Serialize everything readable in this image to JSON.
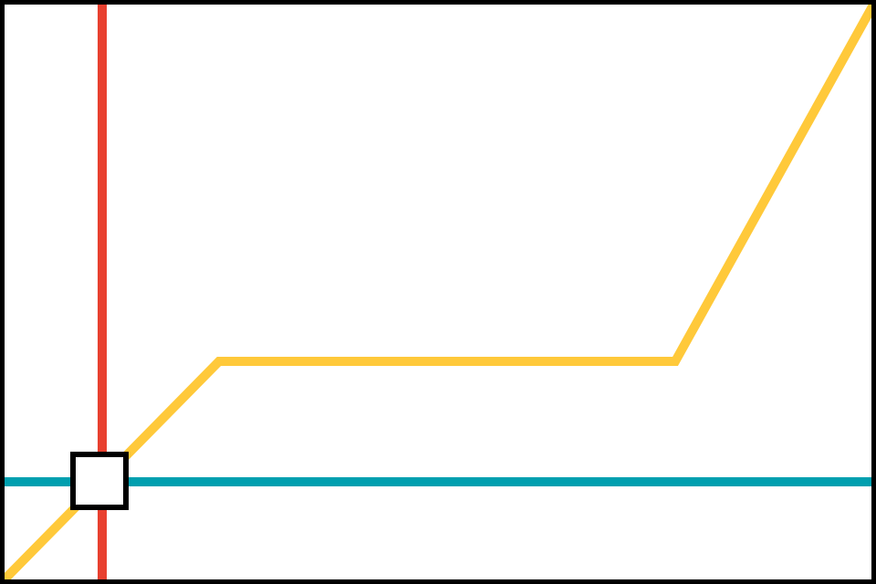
{
  "diagram": {
    "type": "transit-line-map",
    "background": "#ffffff",
    "frame_color": "#000000",
    "lines": [
      {
        "id": "red-line",
        "color": "#e8402f"
      },
      {
        "id": "teal-line",
        "color": "#009faf"
      },
      {
        "id": "yellow-line",
        "color": "#ffc93a"
      }
    ],
    "stations": [
      {
        "id": "interchange-station",
        "style": "square",
        "fill": "#ffffff",
        "outline": "#000000"
      }
    ]
  }
}
